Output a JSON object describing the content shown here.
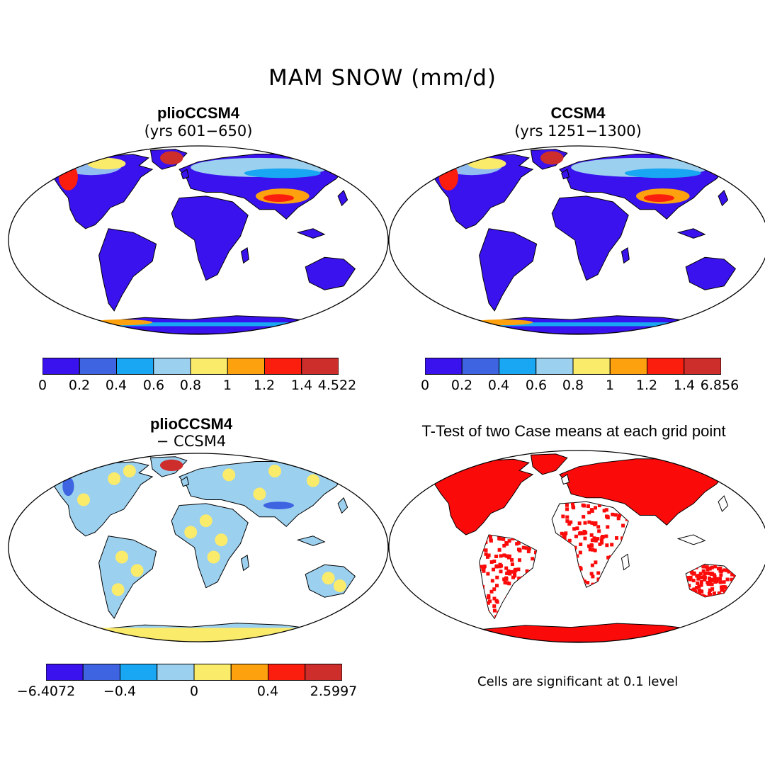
{
  "figure": {
    "title": "MAM SNOW (mm/d)"
  },
  "panels": [
    {
      "id": "plio",
      "title": "plioCCSM4",
      "subtitle": "(yrs 601−650)",
      "colorbar": {
        "colors": [
          "#3a12ee",
          "#3e64e1",
          "#19a6f2",
          "#9bd0ef",
          "#fbeb6b",
          "#fda10e",
          "#fb1e0f",
          "#cd2d2b"
        ],
        "tick_labels": [
          "0",
          "0.2",
          "0.4",
          "0.6",
          "0.8",
          "1",
          "1.2",
          "1.4",
          "4.522"
        ]
      }
    },
    {
      "id": "ccsm4",
      "title": "CCSM4",
      "subtitle": "(yrs 1251−1300)",
      "colorbar": {
        "colors": [
          "#3a12ee",
          "#3e64e1",
          "#19a6f2",
          "#9bd0ef",
          "#fbeb6b",
          "#fda10e",
          "#fb1e0f",
          "#cd2d2b"
        ],
        "tick_labels": [
          "0",
          "0.2",
          "0.4",
          "0.6",
          "0.8",
          "1",
          "1.2",
          "1.4",
          "6.856"
        ]
      }
    },
    {
      "id": "diff",
      "title": "plioCCSM4",
      "subtitle": "− CCSM4",
      "colorbar": {
        "colors": [
          "#3a12ee",
          "#3e64e1",
          "#19a6f2",
          "#9bd0ef",
          "#fbeb6b",
          "#fda10e",
          "#fb1e0f",
          "#cd2d2b"
        ],
        "tick_labels": [
          "−6.4072",
          "−0.4",
          "0",
          "0.4",
          "2.5997"
        ]
      }
    },
    {
      "id": "ttest",
      "title": "T-Test of two Case means at each grid point",
      "note": "Cells are significant at 0.1 level",
      "significant_color": "#fb0a0a"
    }
  ]
}
